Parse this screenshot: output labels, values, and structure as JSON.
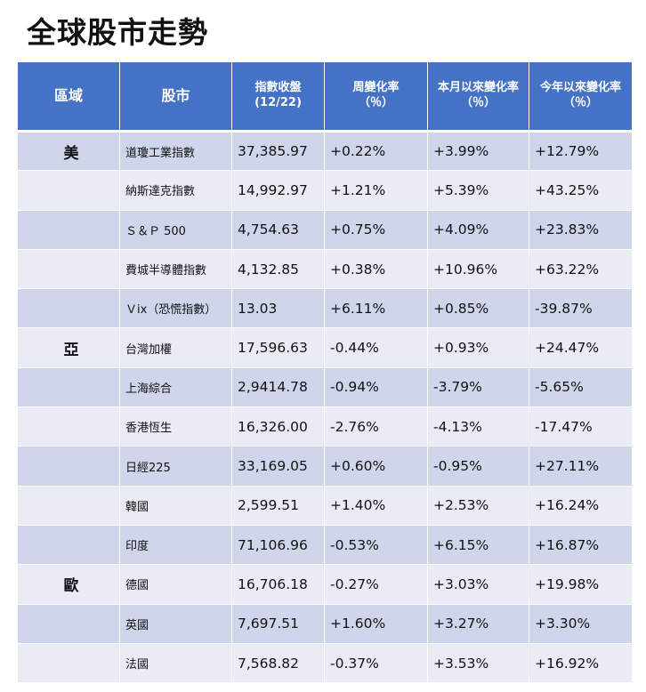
{
  "title": "全球股市走勢",
  "headers": {
    "region": "區域",
    "market": "股市",
    "close_line1": "指數收盤",
    "close_line2": "(12/22)",
    "week_line1": "周變化率",
    "week_line2": "（％）",
    "month_line1": "本月以來變化率",
    "month_line2": "（％）",
    "ytd_line1": "今年以來變化率",
    "ytd_line2": "（％）"
  },
  "colors": {
    "header_bg": "#4472c4",
    "row_odd": "#cfd5ea",
    "row_even": "#e9ebf5",
    "positive": "#1fa04a",
    "negative": "#e0151b"
  },
  "rows": [
    {
      "region": "美",
      "market": "道瓊工業指數",
      "close": "37,385.97",
      "week": "+0.22%",
      "month": "+3.99%",
      "ytd": "+12.79%"
    },
    {
      "region": "",
      "market": "納斯達克指數",
      "close": "14,992.97",
      "week": "+1.21%",
      "month": "+5.39%",
      "ytd": "+43.25%"
    },
    {
      "region": "",
      "market": "Ｓ＆Ｐ 500",
      "close": "4,754.63",
      "week": "+0.75%",
      "month": "+4.09%",
      "ytd": "+23.83%"
    },
    {
      "region": "",
      "market": "費城半導體指數",
      "close": "4,132.85",
      "week": "+0.38%",
      "month": "+10.96%",
      "ytd": "+63.22%"
    },
    {
      "region": "",
      "market": "Ｖix（恐慌指數）",
      "close": "13.03",
      "week": "+6.11%",
      "month": "+0.85%",
      "ytd": "-39.87%"
    },
    {
      "region": "亞",
      "market": "台灣加權",
      "close": "17,596.63",
      "week": "-0.44%",
      "month": "+0.93%",
      "ytd": "+24.47%"
    },
    {
      "region": "",
      "market": "上海綜合",
      "close": "2,9414.78",
      "week": "-0.94%",
      "month": "-3.79%",
      "ytd": "-5.65%"
    },
    {
      "region": "",
      "market": "香港恆生",
      "close": "16,326.00",
      "week": "-2.76%",
      "month": "-4.13%",
      "ytd": "-17.47%"
    },
    {
      "region": "",
      "market": "日經225",
      "close": "33,169.05",
      "week": "+0.60%",
      "month": "-0.95%",
      "ytd": "+27.11%"
    },
    {
      "region": "",
      "market": "韓國",
      "close": "2,599.51",
      "week": "+1.40%",
      "month": "+2.53%",
      "ytd": "+16.24%"
    },
    {
      "region": "",
      "market": "印度",
      "close": "71,106.96",
      "week": "-0.53%",
      "month": "+6.15%",
      "ytd": "+16.87%"
    },
    {
      "region": "歐",
      "market": "德國",
      "close": "16,706.18",
      "week": "-0.27%",
      "month": "+3.03%",
      "ytd": "+19.98%"
    },
    {
      "region": "",
      "market": "英國",
      "close": "7,697.51",
      "week": "+1.60%",
      "month": "+3.27%",
      "ytd": "+3.30%"
    },
    {
      "region": "",
      "market": "法國",
      "close": "7,568.82",
      "week": "-0.37%",
      "month": "+3.53%",
      "ytd": "+16.92%"
    }
  ]
}
